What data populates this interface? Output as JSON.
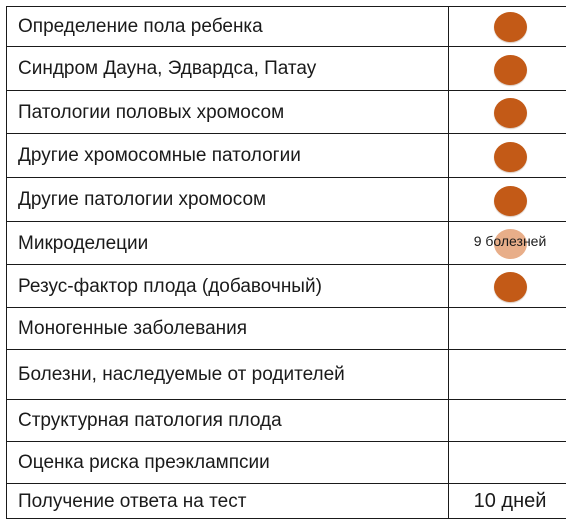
{
  "rows": [
    {
      "label": "Определение пола ребенка",
      "marker": "filled",
      "height": 40,
      "dot_top": 5
    },
    {
      "label": "Синдром Дауна, Эдвардса, Патау",
      "marker": "filled",
      "height": 44,
      "dot_top": 8
    },
    {
      "label": "Патологии половых хромосом",
      "marker": "filled",
      "height": 43,
      "dot_top": 7
    },
    {
      "label": "Другие хромосомные патологии",
      "marker": "filled",
      "height": 44,
      "dot_top": 8
    },
    {
      "label": "Другие патологии хромосом",
      "marker": "filled",
      "height": 44,
      "dot_top": 8
    },
    {
      "label": "Микроделеции",
      "marker": "faded",
      "height": 43,
      "dot_top": 7,
      "note": "9 болезней",
      "note_top": 11
    },
    {
      "label": "Резус-фактор плода (добавочный)",
      "marker": "filled",
      "height": 43,
      "dot_top": 7
    },
    {
      "label": "Моногенные заболевания",
      "marker": "none",
      "height": 42
    },
    {
      "label": "Болезни, наследуемые от родителей",
      "marker": "none",
      "height": 50
    },
    {
      "label": "Структурная патология плода",
      "marker": "none",
      "height": 42
    },
    {
      "label": "Оценка риска преэклампсии",
      "marker": "none",
      "height": 42
    },
    {
      "label": "Получение ответа на тест",
      "marker": "text",
      "value": "10 дней",
      "height": 35
    }
  ],
  "colors": {
    "dot": "#c35a17",
    "dot_faded": "#e8ae89",
    "border": "#1a1a1a"
  }
}
